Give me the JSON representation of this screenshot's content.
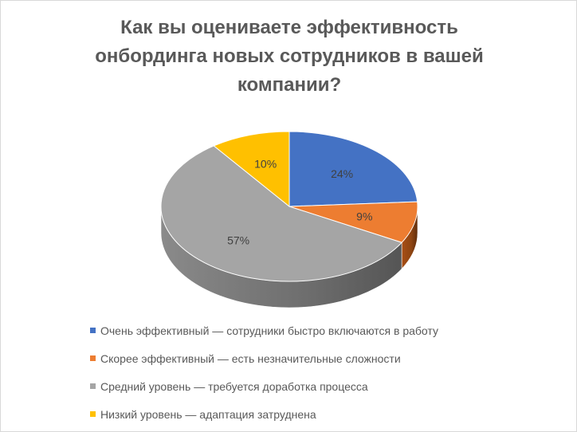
{
  "chart_data": {
    "type": "pie",
    "title": "Как вы оцениваете эффективность онбординга новых сотрудников в вашей компании?",
    "categories": [
      "Очень эффективный — сотрудники быстро включаются в работу",
      "Скорее эффективный — есть незначительные сложности",
      "Средний уровень — требуется доработка процесса",
      "Низкий уровень — адаптация затруднена"
    ],
    "values": [
      24,
      9,
      57,
      10
    ],
    "labels": [
      "24%",
      "9%",
      "57%",
      "10%"
    ],
    "colors": [
      "#4472C4",
      "#ED7D31",
      "#A5A5A5",
      "#FFC000"
    ],
    "legend_position": "bottom",
    "style": "3d"
  }
}
